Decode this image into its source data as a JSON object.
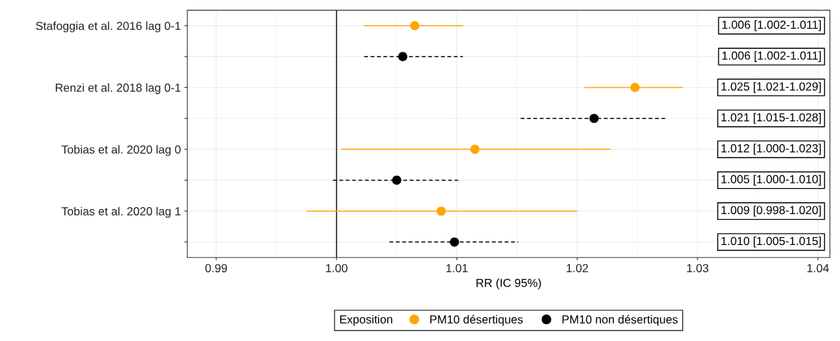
{
  "chart_data": {
    "type": "scatter",
    "orientation": "horizontal",
    "xlabel": "RR (IC 95%)",
    "legend_title": "Exposition",
    "legend": "bottom",
    "grid": true,
    "marker": "circle",
    "categories": [
      "Stafoggia et al. 2016 lag 0-1",
      null,
      "Renzi et al. 2018 lag 0-1",
      null,
      "Tobias et al. 2020 lag 0",
      null,
      "Tobias et al. 2020 lag 1",
      null
    ],
    "xlim": [
      0.9876,
      1.041
    ],
    "xticks": [
      {
        "value": 0.99,
        "label": "0.99"
      },
      {
        "value": 1.0,
        "label": "1.00"
      },
      {
        "value": 1.01,
        "label": "1.01"
      },
      {
        "value": 1.02,
        "label": "1.02"
      },
      {
        "value": 1.03,
        "label": "1.03"
      },
      {
        "value": 1.04,
        "label": "1.04"
      }
    ],
    "ref_lines": [
      {
        "axis": "x",
        "value": 1.0,
        "color": "#000000"
      }
    ],
    "annotations": [
      "1.006 [1.002-1.011]",
      "1.006 [1.002-1.011]",
      "1.025 [1.021-1.029]",
      "1.021 [1.015-1.028]",
      "1.012 [1.000-1.023]",
      "1.005 [1.000-1.010]",
      "1.009 [0.998-1.020]",
      "1.010 [1.005-1.015]"
    ],
    "series": [
      {
        "name": "PM10 désertiques",
        "color": "#ffa500",
        "line_style": "solid",
        "values": [
          1.0065,
          null,
          1.0248,
          null,
          1.0115,
          null,
          1.0087,
          null
        ],
        "errors": [
          [
            1.0023,
            1.0105
          ],
          null,
          [
            1.0206,
            1.0288
          ],
          null,
          [
            1.0004,
            1.0228
          ],
          null,
          [
            0.9975,
            1.02
          ],
          null
        ]
      },
      {
        "name": "PM10 non désertiques",
        "color": "#000000",
        "line_style": "dashed",
        "values": [
          null,
          1.0055,
          null,
          1.0214,
          null,
          1.005,
          null,
          1.0098
        ],
        "errors": [
          null,
          [
            1.0023,
            1.0105
          ],
          null,
          [
            1.0153,
            1.0275
          ],
          null,
          [
            0.9997,
            1.0103
          ],
          null,
          [
            1.0044,
            1.0151
          ]
        ]
      }
    ]
  }
}
